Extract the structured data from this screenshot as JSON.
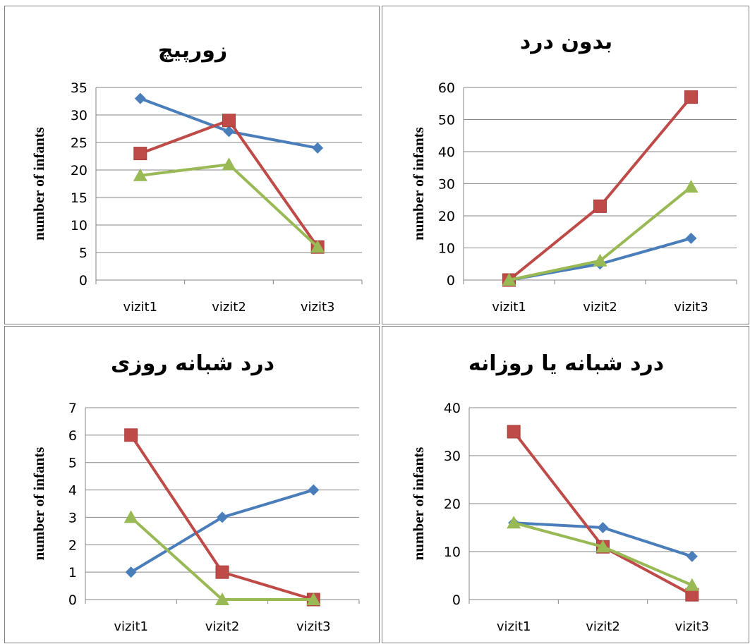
{
  "page": {
    "background": "#ffffff",
    "border_color": "#7f7f7f",
    "grid_color": "#868686"
  },
  "series_colors": [
    "#4a7ebb",
    "#be4b48",
    "#98b954"
  ],
  "series_markers": [
    "diamond",
    "square",
    "triangle"
  ],
  "chart_data": [
    {
      "type": "line",
      "title": "زورپیچ",
      "ylabel": "number of infants",
      "xlabel": "",
      "categories": [
        "vizit1",
        "vizit2",
        "vizit3"
      ],
      "ylim": [
        0,
        35
      ],
      "ystep": 5,
      "grid": true,
      "legend": "none",
      "series": [
        {
          "values": [
            33,
            27,
            24
          ]
        },
        {
          "values": [
            23,
            29,
            6
          ]
        },
        {
          "values": [
            19,
            21,
            6
          ]
        }
      ]
    },
    {
      "type": "line",
      "title": "بدون درد",
      "ylabel": "number of infants",
      "xlabel": "",
      "categories": [
        "vizit1",
        "vizit2",
        "vizit3"
      ],
      "ylim": [
        0,
        60
      ],
      "ystep": 10,
      "grid": true,
      "legend": "none",
      "series": [
        {
          "values": [
            0,
            5,
            13
          ]
        },
        {
          "values": [
            0,
            23,
            57
          ]
        },
        {
          "values": [
            0,
            6,
            29
          ]
        }
      ]
    },
    {
      "type": "line",
      "title": "درد شبانه روزی",
      "ylabel": "number of infants",
      "xlabel": "",
      "categories": [
        "vizit1",
        "vizit2",
        "vizit3"
      ],
      "ylim": [
        0,
        7
      ],
      "ystep": 1,
      "grid": true,
      "legend": "none",
      "series": [
        {
          "values": [
            1,
            3,
            4
          ]
        },
        {
          "values": [
            6,
            1,
            0
          ]
        },
        {
          "values": [
            3,
            0,
            0
          ]
        }
      ]
    },
    {
      "type": "line",
      "title": "درد شبانه یا روزانه",
      "ylabel": "number of infants",
      "xlabel": "",
      "categories": [
        "vizit1",
        "vizit2",
        "vizit3"
      ],
      "ylim": [
        0,
        40
      ],
      "ystep": 10,
      "grid": true,
      "legend": "none",
      "series": [
        {
          "values": [
            16,
            15,
            9
          ]
        },
        {
          "values": [
            35,
            11,
            1
          ]
        },
        {
          "values": [
            16,
            11,
            3
          ]
        }
      ]
    }
  ]
}
